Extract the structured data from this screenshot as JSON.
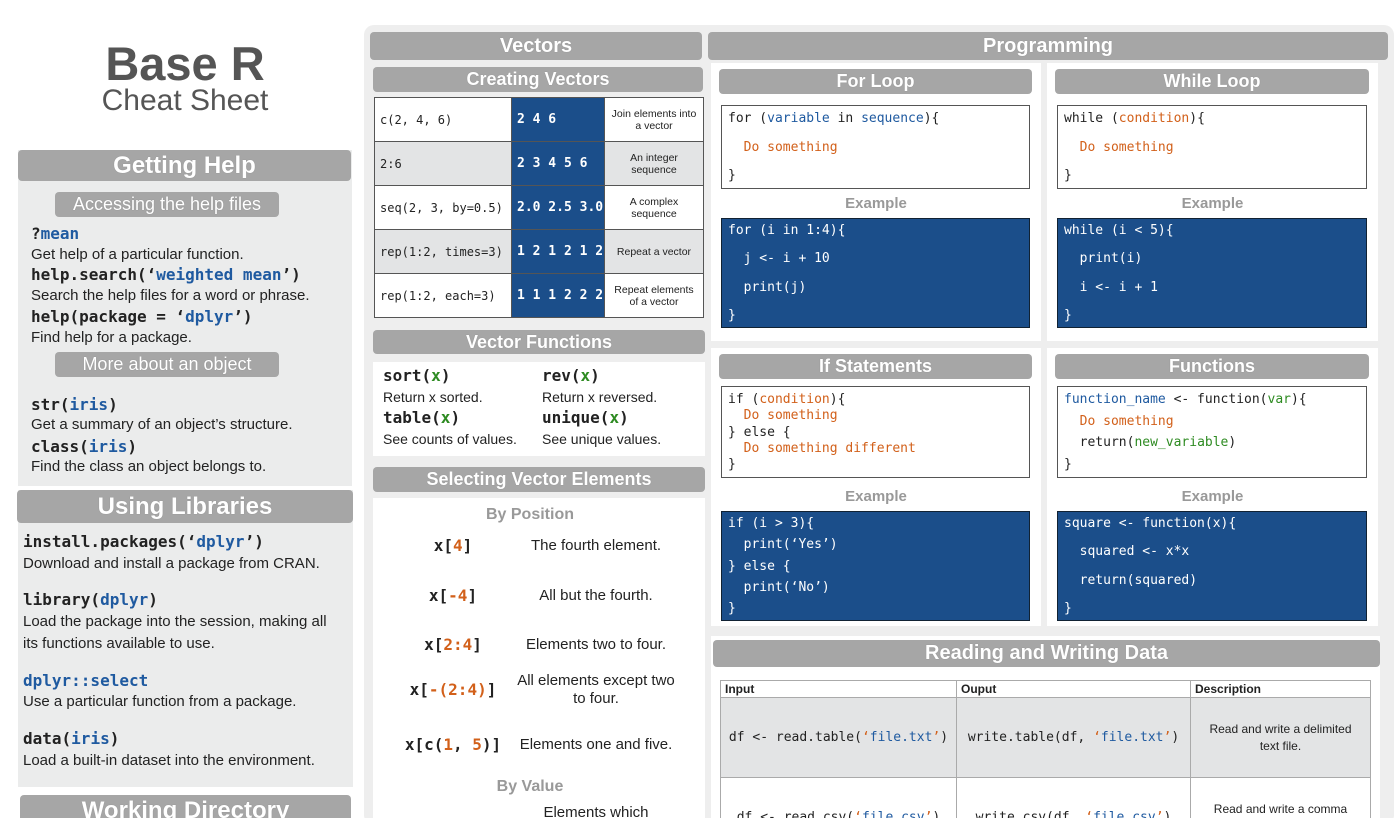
{
  "header": {
    "title": "Base R",
    "subtitle": "Cheat Sheet"
  },
  "getting_help": {
    "title": "Getting Help",
    "subsections": [
      {
        "title": "Accessing the help files",
        "items": [
          {
            "code": [
              "?",
              {
                "arg": "mean"
              }
            ],
            "desc": "Get help of a particular function."
          },
          {
            "code": [
              "help.search(‘",
              {
                "arg": "weighted mean"
              },
              "’)"
            ],
            "desc": "Search the help files for a word or phrase."
          },
          {
            "code": [
              "help(package = ‘",
              {
                "arg": "dplyr"
              },
              "’)"
            ],
            "desc": "Find help for a package."
          }
        ]
      },
      {
        "title": "More about an object",
        "items": [
          {
            "code": [
              "str(",
              {
                "arg": "iris"
              },
              ")"
            ],
            "desc": "Get a summary of an object’s structure."
          },
          {
            "code": [
              "class(",
              {
                "arg": "iris"
              },
              ")"
            ],
            "desc": "Find the class an object belongs to."
          }
        ]
      }
    ]
  },
  "using_libraries": {
    "title": "Using Libraries",
    "items": [
      {
        "code": [
          "install.packages(‘",
          {
            "arg": "dplyr"
          },
          "’)"
        ],
        "desc": "Download and install a package from CRAN."
      },
      {
        "code": [
          "library(",
          {
            "arg": "dplyr"
          },
          ")"
        ],
        "desc": "Load the package into the session, making all its functions available to use."
      },
      {
        "code": [
          {
            "arg": "dplyr::select"
          }
        ],
        "desc": "Use a particular function from a package."
      },
      {
        "code": [
          "data(",
          {
            "arg": "iris"
          },
          ")"
        ],
        "desc": "Load a built-in dataset into the environment."
      }
    ]
  },
  "working_directory": {
    "title": "Working Directory"
  },
  "vectors": {
    "title": "Vectors",
    "creating": {
      "title": "Creating Vectors",
      "rows": [
        [
          "c(2, 4, 6)",
          "2 4 6",
          "Join elements into a vector"
        ],
        [
          "2:6",
          "2 3 4 5 6",
          "An integer sequence"
        ],
        [
          "seq(2, 3, by=0.5)",
          "2.0 2.5 3.0",
          "A complex sequence"
        ],
        [
          "rep(1:2, times=3)",
          "1 2 1 2 1 2",
          "Repeat a vector"
        ],
        [
          "rep(1:2, each=3)",
          "1 1 1 2 2 2",
          "Repeat elements of a vector"
        ]
      ]
    },
    "functions": {
      "title": "Vector Functions",
      "items": [
        {
          "code": [
            "sort(",
            {
              "val": "x"
            },
            ")"
          ],
          "desc": "Return x sorted."
        },
        {
          "code": [
            "rev(",
            {
              "val": "x"
            },
            ")"
          ],
          "desc": "Return x reversed."
        },
        {
          "code": [
            "table(",
            {
              "val": "x"
            },
            ")"
          ],
          "desc": "See counts of values."
        },
        {
          "code": [
            "unique(",
            {
              "val": "x"
            },
            ")"
          ],
          "desc": "See unique values."
        }
      ]
    },
    "selecting": {
      "title": "Selecting Vector Elements",
      "by_position": {
        "title": "By Position",
        "rows": [
          {
            "code": [
              "x[",
              {
                "stmt": "4"
              },
              "]"
            ],
            "desc": "The fourth element."
          },
          {
            "code": [
              "x[",
              {
                "stmt": "-4"
              },
              "]"
            ],
            "desc": "All but the fourth."
          },
          {
            "code": [
              "x[",
              {
                "stmt": "2:4"
              },
              "]"
            ],
            "desc": "Elements two to four."
          },
          {
            "code": [
              "x[",
              {
                "stmt": "-(2:4)"
              },
              "]"
            ],
            "desc": "All elements except two to four."
          },
          {
            "code": [
              "x[c(",
              {
                "stmt": "1"
              },
              ", ",
              {
                "stmt": "5"
              },
              ")]"
            ],
            "desc": "Elements one and five."
          }
        ]
      },
      "by_value": {
        "title": "By Value",
        "rows": [
          {
            "desc": "Elements which"
          }
        ]
      }
    }
  },
  "programming": {
    "title": "Programming",
    "blocks": [
      {
        "title": "For Loop",
        "syntax": [
          [
            "for (",
            {
              "arg": "variable"
            },
            " in ",
            {
              "arg": "sequence"
            },
            "){"
          ],
          [
            {
              "stmt": "  Do something"
            }
          ],
          [
            "}"
          ]
        ],
        "example_label": "Example",
        "example": [
          [
            "for (i in 1:4){"
          ],
          [
            "  j <- i + 10"
          ],
          [
            "  print(j)"
          ],
          [
            "}"
          ]
        ]
      },
      {
        "title": "While Loop",
        "syntax": [
          [
            "while (",
            {
              "stmt": "condition"
            },
            "){"
          ],
          [
            {
              "stmt": "  Do something"
            }
          ],
          [
            "}"
          ]
        ],
        "example_label": "Example",
        "example": [
          [
            "while (i < 5){"
          ],
          [
            "  print(i)"
          ],
          [
            "  i <- i + 1"
          ],
          [
            "}"
          ]
        ]
      },
      {
        "title": "If Statements",
        "syntax": [
          [
            "if (",
            {
              "stmt": "condition"
            },
            "){"
          ],
          [
            {
              "stmt": "  Do something"
            }
          ],
          [
            "} else {"
          ],
          [
            {
              "stmt": "  Do something different"
            }
          ],
          [
            "}"
          ]
        ],
        "example_label": "Example",
        "example": [
          [
            "if (i > 3){"
          ],
          [
            "  print(‘Yes’)"
          ],
          [
            "} else {"
          ],
          [
            "  print(‘No’)"
          ],
          [
            "}"
          ]
        ]
      },
      {
        "title": "Functions",
        "syntax": [
          [
            {
              "arg": "function_name"
            },
            " <- function(",
            {
              "val": "var"
            },
            "){"
          ],
          [
            {
              "stmt": "  Do something"
            }
          ],
          [
            "  return(",
            {
              "val": "new_variable"
            },
            ")"
          ],
          [
            "}"
          ]
        ],
        "example_label": "Example",
        "example": [
          [
            "square <- function(x){"
          ],
          [
            "  squared <- x*x"
          ],
          [
            "  return(squared)"
          ],
          [
            "}"
          ]
        ]
      }
    ]
  },
  "reading_writing": {
    "title": "Reading and Writing Data",
    "columns": [
      "Input",
      "Ouput",
      "Description"
    ],
    "rows": [
      [
        [
          "df <- read.table(",
          {
            "stmt": "‘"
          },
          {
            "arg": "file.txt"
          },
          {
            "stmt": "’"
          },
          ")"
        ],
        [
          "write.table(df, ",
          {
            "stmt": "‘"
          },
          {
            "arg": "file.txt"
          },
          {
            "stmt": "’"
          },
          ")"
        ],
        "Read and write a delimited text file."
      ],
      [
        [
          "df <- read.csv(",
          {
            "stmt": "‘"
          },
          {
            "arg": "file.csv"
          },
          {
            "stmt": "’"
          },
          ")"
        ],
        [
          "write.csv(df, ",
          {
            "stmt": "‘"
          },
          {
            "arg": "file.csv"
          },
          {
            "stmt": "’"
          },
          ")"
        ],
        "Read and write a comma separated value file. This is a"
      ]
    ]
  }
}
